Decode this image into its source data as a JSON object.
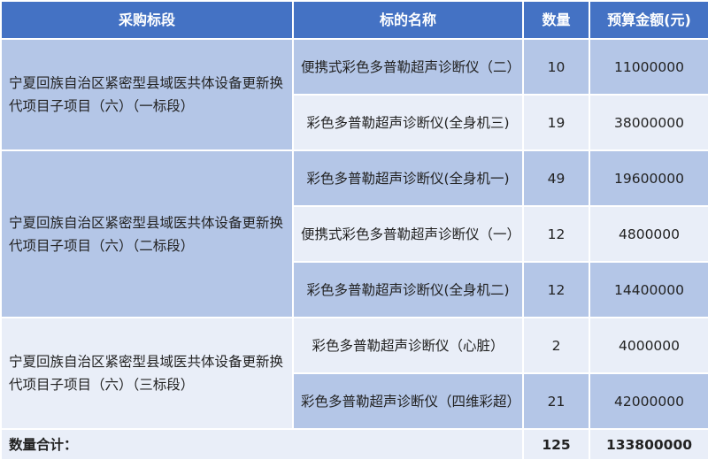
{
  "headers": [
    "采购标段",
    "标的名称",
    "数量",
    "预算金额(元)"
  ],
  "segments": [
    {
      "name": "宁夏回族自治区紧密型县域医共体设备更新换代项目子项目（六）（一标段）",
      "items": [
        {
          "name": "便携式彩色多普勒超声诊断仪（二）",
          "qty": "10",
          "budget": "11000000"
        },
        {
          "name": "彩色多普勒超声诊断仪(全身机三)",
          "qty": "19",
          "budget": "38000000"
        }
      ]
    },
    {
      "name": "宁夏回族自治区紧密型县域医共体设备更新换代项目子项目（六）（二标段）",
      "items": [
        {
          "name": "彩色多普勒超声诊断仪(全身机一)",
          "qty": "49",
          "budget": "19600000"
        },
        {
          "name": "便携式彩色多普勒超声诊断仪（一）",
          "qty": "12",
          "budget": "4800000"
        },
        {
          "name": "彩色多普勒超声诊断仪(全身机二)",
          "qty": "12",
          "budget": "14400000"
        }
      ]
    },
    {
      "name": "宁夏回族自治区紧密型县域医共体设备更新换代项目子项目（六）（三标段）",
      "items": [
        {
          "name": "彩色多普勒超声诊断仪（心脏）",
          "qty": "2",
          "budget": "4000000"
        },
        {
          "name": "彩色多普勒超声诊断仪（四维彩超）",
          "qty": "21",
          "budget": "42000000"
        }
      ]
    }
  ],
  "total": {
    "label": "数量合计：",
    "qty": "125",
    "budget": "133800000"
  },
  "colors": {
    "header": "#4472C4",
    "row_dark": "#B4C6E7",
    "row_light": "#E9EEF8"
  }
}
